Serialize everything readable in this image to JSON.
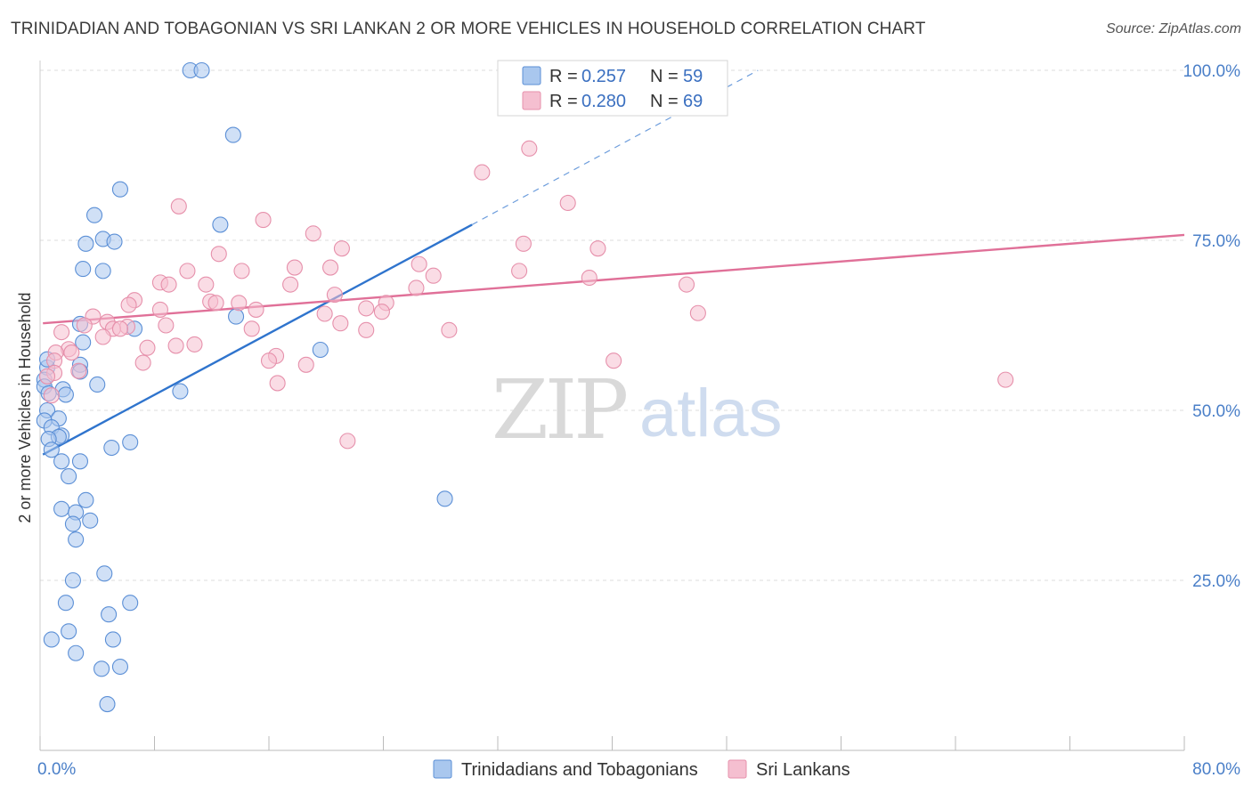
{
  "title": "TRINIDADIAN AND TOBAGONIAN VS SRI LANKAN 2 OR MORE VEHICLES IN HOUSEHOLD CORRELATION CHART",
  "source": "Source: ZipAtlas.com",
  "watermark": {
    "zip": "ZIP",
    "atlas": "atlas"
  },
  "colors": {
    "blue_fill": "#a9c7ee",
    "blue_stroke": "#5b8fd6",
    "blue_line": "#2f74cd",
    "pink_fill": "#f5bfd0",
    "pink_stroke": "#e690ab",
    "pink_line": "#e07098",
    "grid": "#dddddd",
    "tick_label": "#4a7fc8"
  },
  "chart_data": {
    "type": "scatter",
    "xlabel": "",
    "ylabel": "2 or more Vehicles in Household",
    "xlim": [
      0,
      80
    ],
    "ylim": [
      0,
      100
    ],
    "x_tick_labels": [
      "0.0%",
      "80.0%"
    ],
    "y_ticks": [
      25,
      50,
      75,
      100
    ],
    "y_tick_labels": [
      "25.0%",
      "50.0%",
      "75.0%",
      "100.0%"
    ],
    "grid": true,
    "legend_position": "top-center",
    "stats": [
      {
        "r_label": "R =",
        "r_value": "0.257",
        "n_label": "N =",
        "n_value": "59"
      },
      {
        "r_label": "R =",
        "r_value": "0.280",
        "n_label": "N =",
        "n_value": "69"
      }
    ],
    "series": [
      {
        "name": "Trinidadians and Tobagonians",
        "trend": {
          "x0": 0.2,
          "y0": 43.5,
          "x1": 30.2,
          "y1": 77.3,
          "dash_to_x": 50.2,
          "dash_to_y": 100
        },
        "points": [
          [
            10.5,
            100
          ],
          [
            11.3,
            100
          ],
          [
            13.5,
            90.5
          ],
          [
            5.6,
            82.5
          ],
          [
            3.8,
            78.7
          ],
          [
            12.6,
            77.3
          ],
          [
            3.2,
            74.5
          ],
          [
            4.4,
            75.2
          ],
          [
            5.2,
            74.8
          ],
          [
            3.0,
            70.8
          ],
          [
            4.4,
            70.5
          ],
          [
            2.8,
            62.7
          ],
          [
            6.6,
            62
          ],
          [
            13.7,
            63.8
          ],
          [
            19.6,
            58.9
          ],
          [
            0.5,
            56.3
          ],
          [
            2.8,
            56.7
          ],
          [
            2.8,
            55.7
          ],
          [
            0.3,
            54.5
          ],
          [
            0.3,
            53.5
          ],
          [
            0.6,
            52.5
          ],
          [
            1.6,
            53.1
          ],
          [
            1.8,
            52.3
          ],
          [
            4.0,
            53.8
          ],
          [
            9.8,
            52.8
          ],
          [
            0.5,
            50.0
          ],
          [
            0.3,
            48.5
          ],
          [
            1.3,
            48.8
          ],
          [
            0.8,
            47.5
          ],
          [
            1.5,
            46.3
          ],
          [
            1.3,
            46.1
          ],
          [
            0.6,
            45.8
          ],
          [
            0.8,
            44.2
          ],
          [
            5.0,
            44.5
          ],
          [
            6.3,
            45.3
          ],
          [
            1.5,
            42.5
          ],
          [
            2.8,
            42.5
          ],
          [
            2.0,
            40.3
          ],
          [
            3.2,
            36.8
          ],
          [
            1.5,
            35.5
          ],
          [
            2.5,
            35.0
          ],
          [
            3.5,
            33.8
          ],
          [
            2.3,
            33.3
          ],
          [
            2.5,
            31.0
          ],
          [
            28.3,
            37.0
          ],
          [
            4.5,
            26.0
          ],
          [
            2.3,
            25.0
          ],
          [
            1.8,
            21.7
          ],
          [
            6.3,
            21.7
          ],
          [
            4.8,
            20.0
          ],
          [
            0.8,
            16.3
          ],
          [
            2.0,
            17.5
          ],
          [
            5.1,
            16.3
          ],
          [
            2.5,
            14.3
          ],
          [
            4.3,
            12.0
          ],
          [
            5.6,
            12.3
          ],
          [
            4.7,
            6.8
          ],
          [
            0.5,
            57.5
          ],
          [
            3.0,
            60.0
          ]
        ]
      },
      {
        "name": "Sri Lankans",
        "trend": {
          "x0": 0.2,
          "y0": 62.8,
          "x1": 80,
          "y1": 75.8
        },
        "points": [
          [
            34.2,
            88.5
          ],
          [
            30.9,
            85.0
          ],
          [
            9.7,
            80.0
          ],
          [
            36.9,
            80.5
          ],
          [
            15.6,
            78.0
          ],
          [
            19.1,
            76.0
          ],
          [
            33.8,
            74.5
          ],
          [
            39.0,
            73.8
          ],
          [
            21.1,
            73.8
          ],
          [
            12.5,
            73.0
          ],
          [
            26.5,
            71.5
          ],
          [
            17.8,
            71.0
          ],
          [
            20.3,
            71.0
          ],
          [
            10.3,
            70.5
          ],
          [
            14.1,
            70.5
          ],
          [
            33.5,
            70.5
          ],
          [
            27.5,
            69.8
          ],
          [
            38.4,
            69.5
          ],
          [
            8.4,
            68.8
          ],
          [
            9.0,
            68.5
          ],
          [
            11.6,
            68.5
          ],
          [
            17.5,
            68.5
          ],
          [
            26.3,
            68.0
          ],
          [
            45.2,
            68.5
          ],
          [
            20.6,
            67.0
          ],
          [
            6.6,
            66.2
          ],
          [
            6.2,
            65.5
          ],
          [
            11.9,
            66.0
          ],
          [
            12.3,
            65.8
          ],
          [
            13.9,
            65.8
          ],
          [
            15.1,
            64.8
          ],
          [
            22.8,
            65.0
          ],
          [
            24.2,
            65.8
          ],
          [
            8.4,
            64.8
          ],
          [
            19.9,
            64.2
          ],
          [
            23.9,
            64.5
          ],
          [
            3.7,
            63.8
          ],
          [
            4.7,
            63.0
          ],
          [
            3.1,
            62.5
          ],
          [
            8.8,
            62.5
          ],
          [
            10.8,
            59.7
          ],
          [
            14.8,
            62.0
          ],
          [
            21.0,
            62.8
          ],
          [
            22.8,
            61.8
          ],
          [
            28.6,
            61.8
          ],
          [
            6.1,
            62.3
          ],
          [
            5.1,
            62.0
          ],
          [
            5.6,
            62.0
          ],
          [
            46.0,
            64.3
          ],
          [
            4.4,
            60.8
          ],
          [
            1.5,
            61.5
          ],
          [
            2.0,
            59.0
          ],
          [
            1.1,
            58.5
          ],
          [
            2.2,
            58.5
          ],
          [
            1.0,
            57.3
          ],
          [
            7.5,
            59.2
          ],
          [
            9.5,
            59.5
          ],
          [
            16.5,
            58.0
          ],
          [
            16.0,
            57.3
          ],
          [
            7.2,
            57.0
          ],
          [
            18.6,
            56.7
          ],
          [
            2.7,
            55.8
          ],
          [
            1.0,
            55.5
          ],
          [
            0.5,
            55.0
          ],
          [
            16.6,
            54.0
          ],
          [
            67.5,
            54.5
          ],
          [
            40.1,
            57.3
          ],
          [
            21.5,
            45.5
          ],
          [
            0.8,
            52.2
          ]
        ]
      }
    ]
  }
}
